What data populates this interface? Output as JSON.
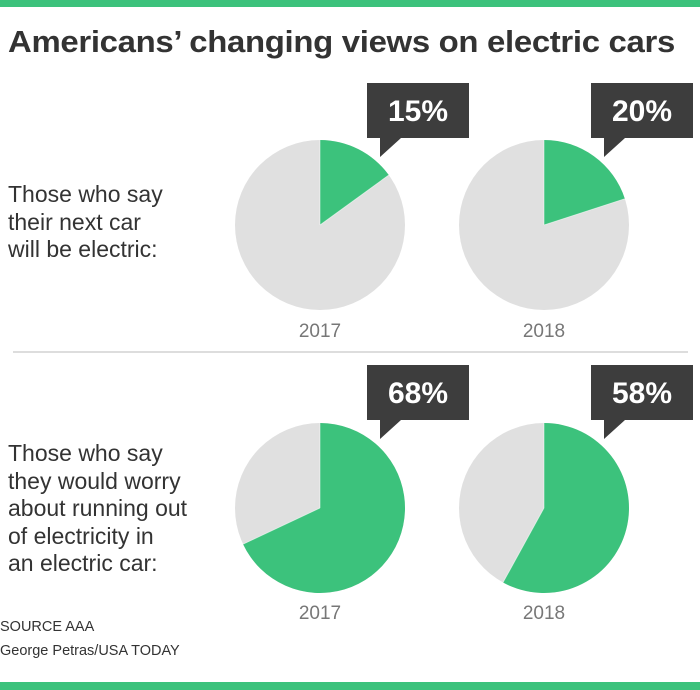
{
  "title": "Americans’ changing views on electric cars",
  "colors": {
    "accent": "#3cc27c",
    "remainder": "#e0e0e0",
    "callout": "#3d3d3d",
    "divider": "#dddddd"
  },
  "chart_data": [
    {
      "type": "pie",
      "question": "Those who say their next car will be electric:",
      "question_lines": [
        "Those who say",
        "their next car",
        "will be electric:"
      ],
      "pies": [
        {
          "year": "2017",
          "value": 15,
          "label": "15%"
        },
        {
          "year": "2018",
          "value": 20,
          "label": "20%"
        }
      ]
    },
    {
      "type": "pie",
      "question": "Those who say they would worry about running out of electricity in an electric car:",
      "question_lines": [
        "Those who say",
        "they would worry",
        "about running out",
        "of electricity in",
        "an electric car:"
      ],
      "pies": [
        {
          "year": "2017",
          "value": 68,
          "label": "68%"
        },
        {
          "year": "2018",
          "value": 58,
          "label": "58%"
        }
      ]
    }
  ],
  "footer": {
    "source": "SOURCE AAA",
    "credit": "George Petras/USA TODAY"
  }
}
